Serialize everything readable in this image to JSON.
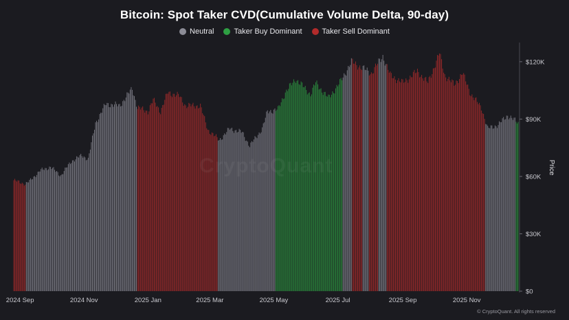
{
  "chart_data": {
    "type": "bar",
    "title": "Bitcoin: Spot Taker CVD(Cumulative Volume Delta, 90-day)",
    "ylabel": "Price",
    "ylim": [
      0,
      130000
    ],
    "yticks": [
      "$0",
      "$30K",
      "$60K",
      "$90K",
      "$120K"
    ],
    "ytick_values": [
      0,
      30000,
      60000,
      90000,
      120000
    ],
    "xticks": [
      "2024 Sep",
      "2024 Nov",
      "2025 Jan",
      "2025 Mar",
      "2025 May",
      "2025 Jul",
      "2025 Sep",
      "2025 Nov"
    ],
    "xtick_dates": [
      "2024-09-01",
      "2024-11-01",
      "2025-01-01",
      "2025-03-01",
      "2025-05-01",
      "2025-07-01",
      "2025-09-01",
      "2025-11-01"
    ],
    "x_range": [
      "2024-08-26",
      "2025-12-20"
    ],
    "grid": false,
    "legend_position": "top-center",
    "legend": [
      {
        "name": "Neutral",
        "color": "#8c8c96"
      },
      {
        "name": "Taker Buy Dominant",
        "color": "#2ea043"
      },
      {
        "name": "Taker Sell Dominant",
        "color": "#b22b2b"
      }
    ],
    "price_anchors": [
      [
        "2024-08-26",
        58000
      ],
      [
        "2024-09-06",
        56000
      ],
      [
        "2024-09-10",
        57500
      ],
      [
        "2024-09-20",
        63000
      ],
      [
        "2024-09-30",
        65000
      ],
      [
        "2024-10-10",
        60500
      ],
      [
        "2024-10-20",
        68000
      ],
      [
        "2024-10-30",
        71000
      ],
      [
        "2024-11-05",
        69000
      ],
      [
        "2024-11-12",
        88000
      ],
      [
        "2024-11-22",
        98000
      ],
      [
        "2024-12-05",
        97000
      ],
      [
        "2024-12-17",
        106000
      ],
      [
        "2024-12-22",
        96000
      ],
      [
        "2025-01-01",
        94000
      ],
      [
        "2025-01-06",
        100000
      ],
      [
        "2025-01-13",
        94000
      ],
      [
        "2025-01-20",
        104000
      ],
      [
        "2025-01-31",
        102000
      ],
      [
        "2025-02-06",
        97000
      ],
      [
        "2025-02-20",
        97000
      ],
      [
        "2025-02-27",
        84500
      ],
      [
        "2025-03-10",
        79000
      ],
      [
        "2025-03-20",
        85000
      ],
      [
        "2025-04-01",
        83000
      ],
      [
        "2025-04-08",
        76000
      ],
      [
        "2025-04-20",
        85000
      ],
      [
        "2025-04-25",
        94000
      ],
      [
        "2025-05-05",
        95000
      ],
      [
        "2025-05-12",
        104000
      ],
      [
        "2025-05-22",
        111000
      ],
      [
        "2025-06-05",
        103000
      ],
      [
        "2025-06-10",
        109000
      ],
      [
        "2025-06-22",
        101000
      ],
      [
        "2025-07-03",
        109000
      ],
      [
        "2025-07-14",
        120000
      ],
      [
        "2025-08-02",
        114000
      ],
      [
        "2025-08-13",
        123000
      ],
      [
        "2025-08-20",
        113000
      ],
      [
        "2025-09-01",
        109000
      ],
      [
        "2025-09-15",
        115000
      ],
      [
        "2025-09-25",
        109000
      ],
      [
        "2025-10-06",
        124500
      ],
      [
        "2025-10-11",
        113000
      ],
      [
        "2025-10-20",
        108000
      ],
      [
        "2025-10-28",
        114000
      ],
      [
        "2025-11-05",
        103000
      ],
      [
        "2025-11-15",
        96000
      ],
      [
        "2025-11-21",
        85000
      ],
      [
        "2025-12-01",
        87000
      ],
      [
        "2025-12-10",
        92000
      ],
      [
        "2025-12-20",
        88000
      ]
    ],
    "regimes": [
      {
        "start": "2024-08-26",
        "end": "2024-09-06",
        "category": "Taker Sell Dominant"
      },
      {
        "start": "2024-09-07",
        "end": "2024-12-21",
        "category": "Neutral"
      },
      {
        "start": "2024-12-22",
        "end": "2025-03-08",
        "category": "Taker Sell Dominant"
      },
      {
        "start": "2025-03-09",
        "end": "2025-05-02",
        "category": "Neutral"
      },
      {
        "start": "2025-05-03",
        "end": "2025-07-05",
        "category": "Taker Buy Dominant"
      },
      {
        "start": "2025-07-06",
        "end": "2025-07-14",
        "category": "Neutral"
      },
      {
        "start": "2025-07-15",
        "end": "2025-07-24",
        "category": "Taker Sell Dominant"
      },
      {
        "start": "2025-07-25",
        "end": "2025-07-30",
        "category": "Neutral"
      },
      {
        "start": "2025-07-31",
        "end": "2025-08-08",
        "category": "Taker Sell Dominant"
      },
      {
        "start": "2025-08-09",
        "end": "2025-08-16",
        "category": "Neutral"
      },
      {
        "start": "2025-08-17",
        "end": "2025-11-18",
        "category": "Taker Sell Dominant"
      },
      {
        "start": "2025-11-19",
        "end": "2025-12-17",
        "category": "Neutral"
      },
      {
        "start": "2025-12-18",
        "end": "2025-12-20",
        "category": "Taker Buy Dominant"
      }
    ]
  },
  "watermark": "CryptoQuant",
  "copyright": "© CryptoQuant. All rights reserved"
}
